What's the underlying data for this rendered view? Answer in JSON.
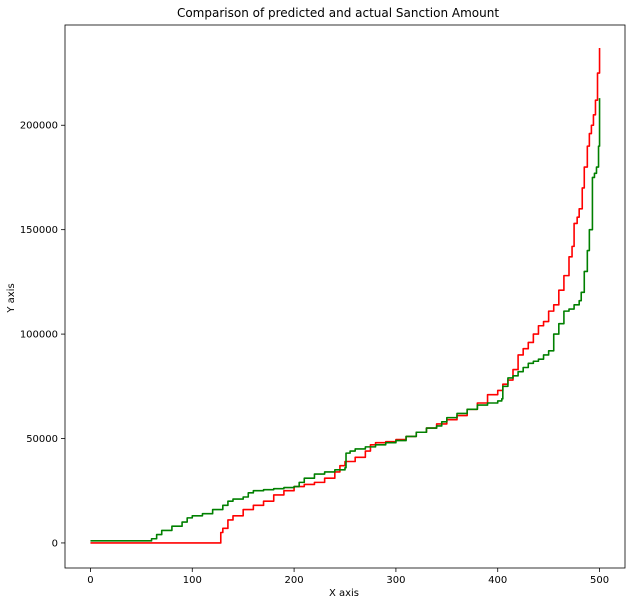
{
  "chart_data": {
    "type": "line",
    "title": "Comparison of predicted and actual Sanction Amount",
    "xlabel": "X axis",
    "ylabel": "Y axis",
    "xlim": [
      -25,
      525
    ],
    "ylim": [
      -12000,
      248000
    ],
    "xticks": [
      0,
      100,
      200,
      300,
      400,
      500
    ],
    "yticks": [
      0,
      50000,
      100000,
      150000,
      200000
    ],
    "grid": false,
    "series": [
      {
        "color": "#ff0000",
        "x": [
          0,
          60,
          127,
          128,
          130,
          135,
          140,
          150,
          160,
          170,
          180,
          190,
          200,
          210,
          220,
          230,
          240,
          245,
          250,
          260,
          270,
          275,
          280,
          290,
          300,
          310,
          320,
          330,
          340,
          350,
          360,
          370,
          380,
          390,
          400,
          405,
          410,
          415,
          420,
          425,
          430,
          435,
          440,
          445,
          450,
          455,
          460,
          465,
          470,
          473,
          475,
          478,
          480,
          483,
          485,
          488,
          490,
          492,
          494,
          496,
          498,
          500
        ],
        "values": [
          0,
          0,
          0,
          5000,
          7000,
          11000,
          13000,
          16000,
          18000,
          20000,
          23000,
          25000,
          27000,
          28000,
          29000,
          31000,
          34000,
          37000,
          39000,
          41000,
          44000,
          47000,
          48000,
          48500,
          49500,
          51000,
          53000,
          55000,
          57000,
          59000,
          61000,
          64000,
          67000,
          71000,
          73000,
          76000,
          78000,
          83000,
          90000,
          93000,
          96000,
          100000,
          104000,
          106000,
          111000,
          114000,
          121000,
          128000,
          137000,
          142000,
          153000,
          156000,
          160000,
          170000,
          180000,
          190000,
          196000,
          200000,
          205000,
          212000,
          225000,
          237000
        ]
      },
      {
        "color": "#008000",
        "x": [
          0,
          60,
          65,
          70,
          80,
          90,
          95,
          100,
          110,
          120,
          130,
          135,
          140,
          150,
          155,
          160,
          170,
          180,
          190,
          200,
          205,
          210,
          220,
          230,
          240,
          250,
          251,
          255,
          260,
          270,
          280,
          290,
          300,
          310,
          320,
          330,
          340,
          345,
          350,
          360,
          370,
          380,
          390,
          400,
          404,
          405,
          410,
          415,
          420,
          425,
          430,
          435,
          440,
          445,
          450,
          455,
          460,
          465,
          470,
          475,
          480,
          482,
          485,
          488,
          490,
          493,
          495,
          497,
          499,
          500
        ],
        "values": [
          1000,
          2000,
          4000,
          6000,
          8000,
          10000,
          12000,
          13000,
          14000,
          16000,
          18000,
          20000,
          21000,
          22000,
          24000,
          25000,
          25500,
          26000,
          26500,
          27000,
          29000,
          31000,
          33000,
          34000,
          35000,
          36000,
          43000,
          44000,
          45000,
          46000,
          47000,
          48000,
          49000,
          51000,
          53000,
          55000,
          56000,
          58000,
          60000,
          62000,
          64000,
          66000,
          67000,
          68000,
          69000,
          75000,
          79000,
          80000,
          82000,
          84000,
          86000,
          87000,
          88000,
          90000,
          92000,
          100000,
          105000,
          111000,
          112000,
          114000,
          116000,
          120000,
          130000,
          140000,
          150000,
          175000,
          177000,
          180000,
          190000,
          213000
        ]
      }
    ]
  }
}
